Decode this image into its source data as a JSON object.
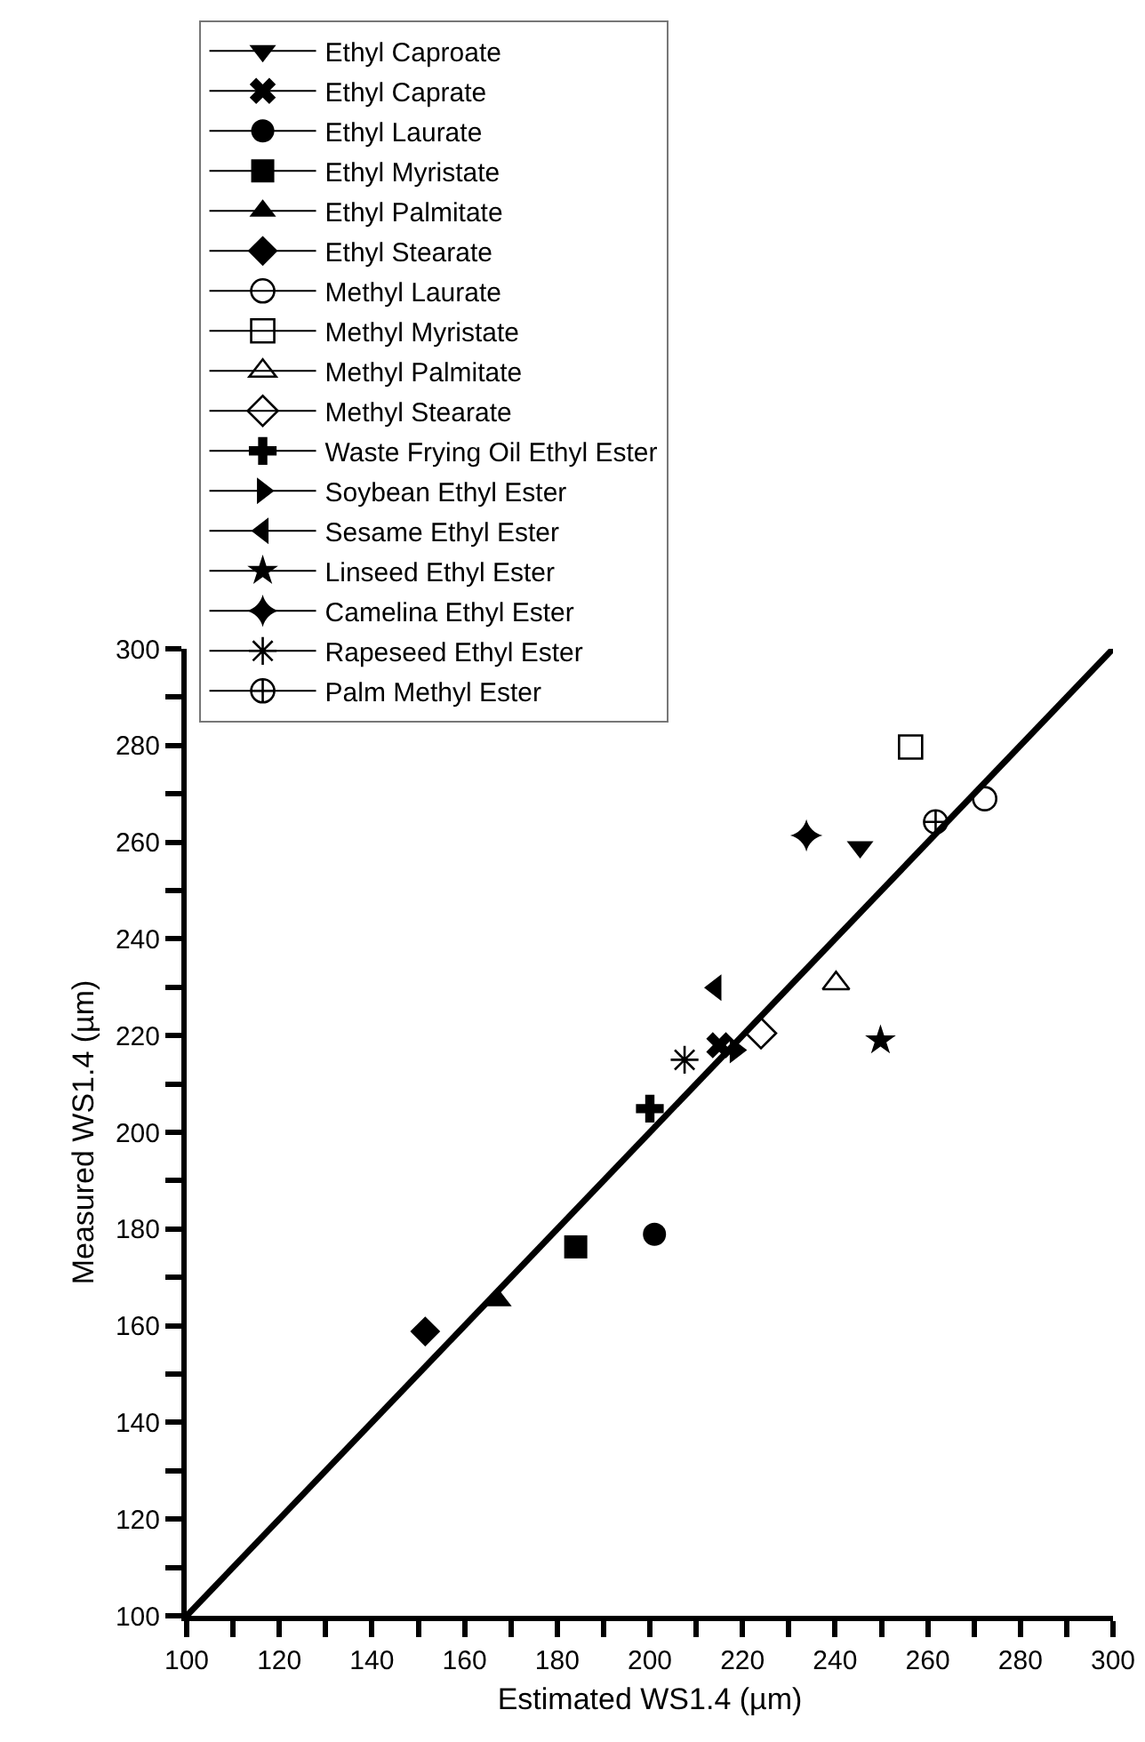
{
  "chart_data": {
    "type": "scatter",
    "xlabel": "Estimated WS1.4 (µm)",
    "ylabel": "Measured WS1.4 (µm)",
    "xlim": [
      100,
      300
    ],
    "ylim": [
      100,
      300
    ],
    "xticks": [
      100,
      {
        "value": 110,
        "label": null
      },
      120,
      {
        "value": 130,
        "label": null
      },
      140,
      {
        "value": 150,
        "label": null
      },
      160,
      {
        "value": 170,
        "label": null
      },
      180,
      {
        "value": 190,
        "label": null
      },
      200,
      {
        "value": 210,
        "label": null
      },
      220,
      {
        "value": 230,
        "label": null
      },
      240,
      {
        "value": 250,
        "label": null
      },
      260,
      {
        "value": 270,
        "label": null
      },
      280,
      {
        "value": 290,
        "label": null
      },
      300
    ],
    "yticks": [
      100,
      {
        "value": 110,
        "label": null
      },
      120,
      {
        "value": 130,
        "label": null
      },
      140,
      {
        "value": 150,
        "label": null
      },
      160,
      {
        "value": 170,
        "label": null
      },
      180,
      {
        "value": 190,
        "label": null
      },
      200,
      {
        "value": 210,
        "label": null
      },
      220,
      {
        "value": 230,
        "label": null
      },
      240,
      {
        "value": 250,
        "label": null
      },
      260,
      {
        "value": 270,
        "label": null
      },
      280,
      {
        "value": 290,
        "label": null
      },
      300
    ],
    "grid": false,
    "legend": "top left",
    "line_style": "solid",
    "series": [
      {
        "name": "Ethyl Caproate",
        "color": "#000000",
        "marker": "triangle-down",
        "x": [
          245.4
        ],
        "values": [
          259
        ]
      },
      {
        "name": "Ethyl Caprate",
        "color": "#000000",
        "marker": "x",
        "x": [
          215
        ],
        "values": [
          218
        ]
      },
      {
        "name": "Ethyl Laurate",
        "color": "#000000",
        "marker": "circle",
        "x": [
          201
        ],
        "values": [
          178.9
        ]
      },
      {
        "name": "Ethyl Myristate",
        "color": "#000000",
        "marker": "square",
        "x": [
          184
        ],
        "values": [
          176.3
        ]
      },
      {
        "name": "Ethyl Palmitate",
        "color": "#000000",
        "marker": "triangle-up",
        "x": [
          167.3
        ],
        "values": [
          165.2
        ]
      },
      {
        "name": "Ethyl Stearate",
        "color": "#000000",
        "marker": "diamond",
        "x": [
          151.5
        ],
        "values": [
          158.8
        ]
      },
      {
        "name": "Methyl Laurate",
        "color": "#000000",
        "marker": "circle-open",
        "x": [
          272.3
        ],
        "values": [
          269
        ]
      },
      {
        "name": "Methyl Myristate",
        "color": "#000000",
        "marker": "square-open",
        "x": [
          256.3
        ],
        "values": [
          279.7
        ]
      },
      {
        "name": "Methyl Palmitate",
        "color": "#000000",
        "marker": "triangle-up-open",
        "x": [
          240.2
        ],
        "values": [
          230.8
        ]
      },
      {
        "name": "Methyl Stearate",
        "color": "#000000",
        "marker": "diamond-open",
        "x": [
          224
        ],
        "values": [
          220.5
        ]
      },
      {
        "name": "Waste Frying Oil Ethyl Ester",
        "color": "#000000",
        "marker": "cross",
        "x": [
          200
        ],
        "values": [
          204.9
        ]
      },
      {
        "name": "Soybean Ethyl Ester",
        "color": "#000000",
        "marker": "triangle-right",
        "x": [
          218.5
        ],
        "values": [
          217
        ]
      },
      {
        "name": "Sesame Ethyl Ester",
        "color": "#000000",
        "marker": "triangle-left",
        "x": [
          214.2
        ],
        "values": [
          229.9
        ]
      },
      {
        "name": "Linseed Ethyl Ester",
        "color": "#000000",
        "marker": "star",
        "x": [
          249.8
        ],
        "values": [
          219
        ]
      },
      {
        "name": "Camelina Ethyl Ester",
        "color": "#000000",
        "marker": "star-diamond",
        "x": [
          233.8
        ],
        "values": [
          261.4
        ]
      },
      {
        "name": "Rapeseed Ethyl Ester",
        "color": "#000000",
        "x": [
          207.5
        ],
        "values": [
          215
        ]
      },
      {
        "name": "Palm Methyl Ester",
        "color": "#000000",
        "x": [
          261.7
        ],
        "values": [
          264.2
        ]
      },
      {
        "type": "line",
        "color": "#000000",
        "marker": "none",
        "x": [
          100,
          300
        ],
        "values": [
          100,
          300
        ]
      }
    ]
  }
}
